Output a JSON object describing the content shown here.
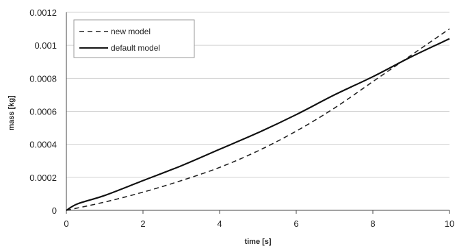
{
  "chart_data": {
    "type": "line",
    "title": "",
    "xlabel": "time [s]",
    "ylabel": "mass [kg]",
    "xlim": [
      0,
      10
    ],
    "ylim": [
      0,
      0.0012
    ],
    "x_ticks": [
      "0",
      "2",
      "4",
      "6",
      "8",
      "10"
    ],
    "y_ticks": [
      "0",
      "0.0002",
      "0.0004",
      "0.0006",
      "0.0008",
      "0.001",
      "0.0012"
    ],
    "grid": "horizontal",
    "legend_position": "top-left",
    "series": [
      {
        "name": "new model",
        "style": "dashed",
        "color": "#222222",
        "x": [
          0,
          1,
          2,
          3,
          4,
          5,
          6,
          7,
          8,
          9,
          10
        ],
        "y": [
          0,
          5e-05,
          0.00011,
          0.00018,
          0.00026,
          0.00036,
          0.00048,
          0.00062,
          0.00078,
          0.00094,
          0.0011
        ]
      },
      {
        "name": "default model",
        "style": "solid",
        "color": "#111111",
        "x": [
          0,
          0.3,
          1,
          2,
          3,
          4,
          5,
          6,
          7,
          8,
          9,
          10
        ],
        "y": [
          0,
          4e-05,
          9e-05,
          0.00018,
          0.00027,
          0.00037,
          0.00047,
          0.00058,
          0.0007,
          0.00081,
          0.00093,
          0.00104
        ]
      }
    ]
  }
}
